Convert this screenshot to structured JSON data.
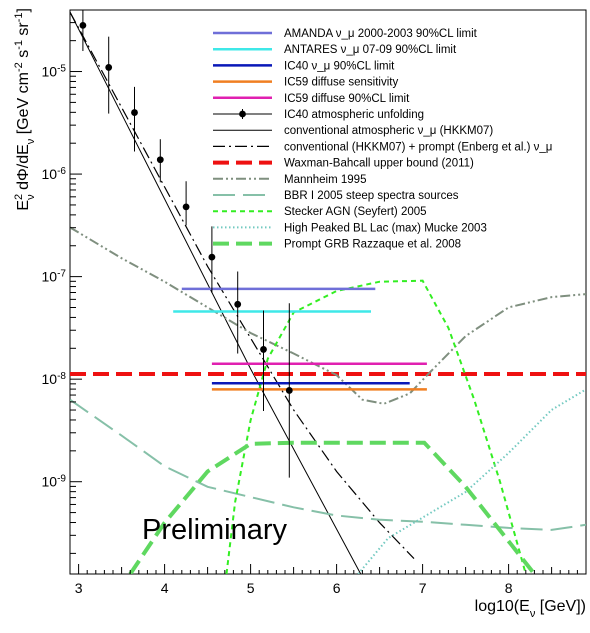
{
  "chart_data": {
    "type": "line",
    "title": "",
    "xlabel": "log10(E_ν [GeV])",
    "ylabel": "E_ν² dΦ/dE_ν [GeV cm⁻² s⁻¹ sr⁻¹]",
    "xlim": [
      2.9,
      8.9
    ],
    "ylim_log10": [
      -9.9,
      -4.4
    ],
    "y_scale": "log",
    "x_ticks": [
      3,
      4,
      5,
      6,
      7,
      8
    ],
    "x_tick_labels": [
      "3",
      "4",
      "5",
      "6",
      "7",
      "8"
    ],
    "y_ticks_log10": [
      -9,
      -8,
      -7,
      -6,
      -5
    ],
    "y_tick_labels": [
      "10-9",
      "10-8",
      "10-7",
      "10-6",
      "10-5"
    ],
    "annotation": "Preliminary",
    "legend_position": "top-right",
    "legend": [
      {
        "name": "AMANDA  ν_μ 2000-2003 90%CL limit",
        "color": "#6f6fd8",
        "style": "solid",
        "width": 2.5
      },
      {
        "name": "ANTARES  ν_μ 07-09 90%CL limit",
        "color": "#3fe8e8",
        "style": "solid",
        "width": 2.5
      },
      {
        "name": "IC40 ν_μ 90%CL limit",
        "color": "#0a18b8",
        "style": "solid",
        "width": 2.5
      },
      {
        "name": "IC59 diffuse sensitivity",
        "color": "#f07f22",
        "style": "solid",
        "width": 2.5
      },
      {
        "name": "IC59 diffuse 90%CL limit",
        "color": "#e020b0",
        "style": "solid",
        "width": 2.5
      },
      {
        "name": "IC40 atmospheric unfolding",
        "color": "#000000",
        "style": "points",
        "width": 1.2
      },
      {
        "name": "conventional atmospheric ν_μ (HKKM07)",
        "color": "#000000",
        "style": "solid",
        "width": 1
      },
      {
        "name": "conventional (HKKM07) + prompt (Enberg et al.) ν_μ",
        "color": "#000000",
        "style": "dashdot",
        "width": 1.2
      },
      {
        "name": "Waxman-Bahcall upper bound (2011)",
        "color": "#ee1111",
        "style": "dash",
        "width": 4
      },
      {
        "name": "Mannheim 1995",
        "color": "#7f8f7f",
        "style": "dashdotdot",
        "width": 2
      },
      {
        "name": "BBR I 2005 steep spectra sources",
        "color": "#86c0a8",
        "style": "longdash",
        "width": 2
      },
      {
        "name": "Stecker AGN (Seyfert) 2005",
        "color": "#33ee22",
        "style": "shortdash",
        "width": 2
      },
      {
        "name": "High Peaked BL Lac (max) Mucke 2003",
        "color": "#72c9c0",
        "style": "dotted",
        "width": 2
      },
      {
        "name": "Prompt GRB Razzaque et al. 2008",
        "color": "#5fd860",
        "style": "dash",
        "width": 4
      }
    ],
    "limits": [
      {
        "name": "AMANDA",
        "x": [
          4.2,
          6.45
        ],
        "log10_y": -7.12,
        "color": "#6f6fd8"
      },
      {
        "name": "ANTARES",
        "x": [
          4.1,
          6.4
        ],
        "log10_y": -7.34,
        "color": "#3fe8e8"
      },
      {
        "name": "IC40 limit",
        "x": [
          4.55,
          6.85
        ],
        "log10_y": -8.04,
        "color": "#0a18b8"
      },
      {
        "name": "IC59 sens",
        "x": [
          4.55,
          7.05
        ],
        "log10_y": -8.1,
        "color": "#f07f22"
      },
      {
        "name": "IC59 limit",
        "x": [
          4.55,
          7.05
        ],
        "log10_y": -7.85,
        "color": "#e020b0"
      }
    ],
    "unfolding_points": [
      {
        "x": 3.05,
        "log10_y": -4.55,
        "err_lo": 0.25,
        "err_hi": 0.18
      },
      {
        "x": 3.35,
        "log10_y": -4.96,
        "err_lo": 0.45,
        "err_hi": 0.3
      },
      {
        "x": 3.65,
        "log10_y": -5.4,
        "err_lo": 0.38,
        "err_hi": 0.25
      },
      {
        "x": 3.95,
        "log10_y": -5.86,
        "err_lo": 0.22,
        "err_hi": 0.2
      },
      {
        "x": 4.25,
        "log10_y": -6.32,
        "err_lo": 0.18,
        "err_hi": 0.25
      },
      {
        "x": 4.55,
        "log10_y": -6.81,
        "err_lo": 0.35,
        "err_hi": 0.3
      },
      {
        "x": 4.85,
        "log10_y": -7.27,
        "err_lo": 0.48,
        "err_hi": 0.32
      },
      {
        "x": 5.15,
        "log10_y": -7.71,
        "err_lo": 0.6,
        "err_hi": 0.38
      },
      {
        "x": 5.45,
        "log10_y": -8.11,
        "err_lo": 0.85,
        "err_hi": 0.85
      }
    ],
    "series": [
      {
        "name": "conventional",
        "points": [
          [
            2.9,
            -4.42
          ],
          [
            5,
            -7.9
          ],
          [
            6.28,
            -9.9
          ]
        ]
      },
      {
        "name": "conventional+prompt",
        "points": [
          [
            2.9,
            -4.42
          ],
          [
            4.5,
            -6.9
          ],
          [
            5,
            -7.6
          ],
          [
            5.5,
            -8.3
          ],
          [
            6,
            -8.9
          ],
          [
            6.5,
            -9.4
          ],
          [
            6.9,
            -9.75
          ]
        ]
      },
      {
        "name": "Waxman-Bahcall",
        "points": [
          [
            2.9,
            -7.95
          ],
          [
            8.9,
            -7.95
          ]
        ]
      },
      {
        "name": "Mannheim",
        "points": [
          [
            2.9,
            -6.52
          ],
          [
            3.5,
            -6.82
          ],
          [
            4,
            -7.05
          ],
          [
            4.5,
            -7.3
          ],
          [
            5,
            -7.55
          ],
          [
            5.5,
            -7.75
          ],
          [
            6,
            -7.96
          ],
          [
            6.3,
            -8.2
          ],
          [
            6.55,
            -8.24
          ],
          [
            6.85,
            -8.14
          ],
          [
            7.1,
            -7.92
          ],
          [
            7.5,
            -7.58
          ],
          [
            8,
            -7.3
          ],
          [
            8.5,
            -7.2
          ],
          [
            8.9,
            -7.17
          ]
        ]
      },
      {
        "name": "BBR",
        "points": [
          [
            2.9,
            -8.2
          ],
          [
            3.5,
            -8.55
          ],
          [
            4,
            -8.85
          ],
          [
            4.5,
            -9.05
          ],
          [
            5,
            -9.15
          ],
          [
            5.5,
            -9.25
          ],
          [
            6,
            -9.33
          ],
          [
            6.5,
            -9.37
          ],
          [
            7,
            -9.39
          ],
          [
            7.5,
            -9.42
          ],
          [
            8,
            -9.45
          ],
          [
            8.5,
            -9.47
          ],
          [
            8.9,
            -9.42
          ]
        ]
      },
      {
        "name": "Stecker",
        "points": [
          [
            4.72,
            -9.9
          ],
          [
            4.82,
            -9.2
          ],
          [
            5,
            -8.4
          ],
          [
            5.2,
            -7.8
          ],
          [
            5.5,
            -7.35
          ],
          [
            6,
            -7.14
          ],
          [
            6.5,
            -7.05
          ],
          [
            7,
            -7.04
          ],
          [
            7.3,
            -7.5
          ],
          [
            7.6,
            -8.2
          ],
          [
            7.9,
            -9
          ],
          [
            8.1,
            -9.6
          ],
          [
            8.2,
            -9.9
          ]
        ]
      },
      {
        "name": "Mucke",
        "points": [
          [
            6.25,
            -9.9
          ],
          [
            6.6,
            -9.55
          ],
          [
            7,
            -9.35
          ],
          [
            7.5,
            -9.1
          ],
          [
            8,
            -8.72
          ],
          [
            8.5,
            -8.3
          ],
          [
            8.9,
            -8.1
          ]
        ]
      },
      {
        "name": "Razzaque",
        "points": [
          [
            3.6,
            -9.9
          ],
          [
            4,
            -9.4
          ],
          [
            4.5,
            -8.9
          ],
          [
            5,
            -8.63
          ],
          [
            5.5,
            -8.62
          ],
          [
            7.02,
            -8.62
          ],
          [
            7.5,
            -9.05
          ],
          [
            8,
            -9.58
          ],
          [
            8.3,
            -9.9
          ]
        ]
      }
    ]
  }
}
